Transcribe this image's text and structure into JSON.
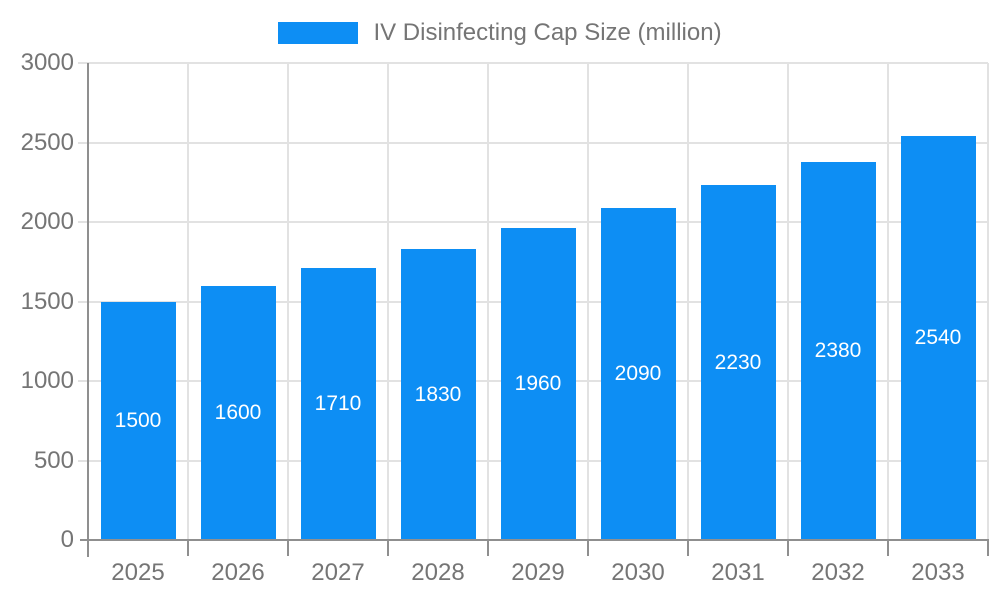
{
  "chart_data": {
    "type": "bar",
    "title": "IV Disinfecting Cap Size (million)",
    "series_name": "IV Disinfecting Cap Size (million)",
    "categories": [
      "2025",
      "2026",
      "2027",
      "2028",
      "2029",
      "2030",
      "2031",
      "2032",
      "2033"
    ],
    "values": [
      1500,
      1600,
      1710,
      1830,
      1960,
      2090,
      2230,
      2380,
      2540
    ],
    "xlabel": "",
    "ylabel": "",
    "ylim": [
      0,
      3000
    ],
    "yticks": [
      0,
      500,
      1000,
      1500,
      2000,
      2500,
      3000
    ],
    "grid": true,
    "legend_position": "top",
    "colors": {
      "bar": "#0D8EF4",
      "data_label": "#ffffff",
      "axis_text": "#757575",
      "grid_line": "#e2e2e2",
      "axis_line": "#8f8f8f"
    }
  }
}
